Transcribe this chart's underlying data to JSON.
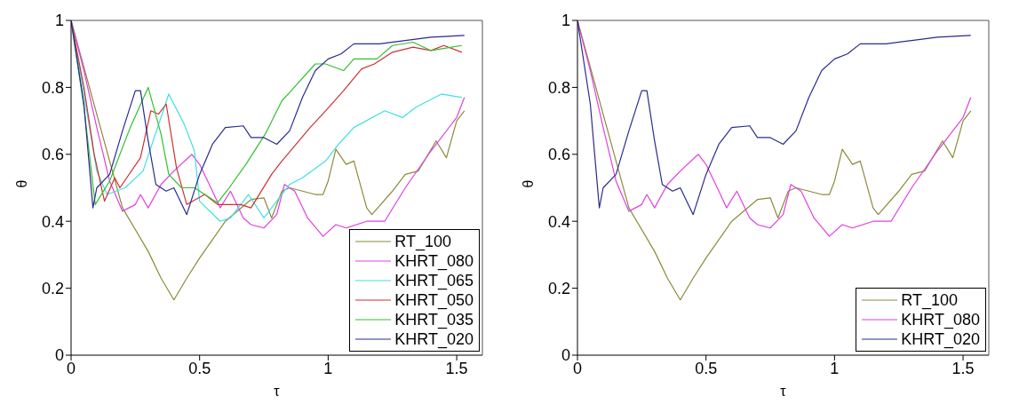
{
  "chart_data": [
    {
      "type": "line",
      "xlabel": "τ",
      "ylabel": "θ",
      "xlim": [
        0,
        1.6
      ],
      "ylim": [
        0,
        1
      ],
      "xticks": [
        0,
        0.5,
        1,
        1.5
      ],
      "yticks": [
        0,
        0.2,
        0.4,
        0.6,
        0.8,
        1
      ],
      "grid": false,
      "legend": "bottom right",
      "marker": "none",
      "line_style": "solid",
      "series": [
        {
          "name": "RT_100",
          "color": "#8b8b3a",
          "x": [
            0,
            0.05,
            0.1,
            0.15,
            0.2,
            0.3,
            0.35,
            0.4,
            0.45,
            0.5,
            0.6,
            0.7,
            0.75,
            0.78,
            0.82,
            0.85,
            0.95,
            0.98,
            1.0,
            1.03,
            1.07,
            1.1,
            1.15,
            1.17,
            1.25,
            1.3,
            1.35,
            1.42,
            1.46,
            1.5,
            1.53
          ],
          "values": [
            1,
            0.86,
            0.72,
            0.58,
            0.44,
            0.31,
            0.23,
            0.165,
            0.23,
            0.29,
            0.4,
            0.465,
            0.47,
            0.41,
            0.49,
            0.5,
            0.48,
            0.48,
            0.52,
            0.615,
            0.57,
            0.58,
            0.44,
            0.42,
            0.49,
            0.54,
            0.55,
            0.64,
            0.59,
            0.7,
            0.73
          ]
        },
        {
          "name": "KHRT_080",
          "color": "#e040e0",
          "x": [
            0,
            0.05,
            0.1,
            0.15,
            0.2,
            0.25,
            0.27,
            0.3,
            0.35,
            0.4,
            0.47,
            0.5,
            0.55,
            0.58,
            0.62,
            0.67,
            0.7,
            0.75,
            0.8,
            0.83,
            0.87,
            0.92,
            0.98,
            1.03,
            1.07,
            1.15,
            1.22,
            1.3,
            1.4,
            1.5,
            1.53
          ],
          "values": [
            1,
            0.85,
            0.68,
            0.52,
            0.43,
            0.45,
            0.48,
            0.44,
            0.51,
            0.55,
            0.6,
            0.57,
            0.49,
            0.44,
            0.49,
            0.41,
            0.39,
            0.38,
            0.42,
            0.51,
            0.49,
            0.41,
            0.355,
            0.39,
            0.38,
            0.4,
            0.4,
            0.5,
            0.61,
            0.71,
            0.77
          ]
        },
        {
          "name": "KHRT_065",
          "color": "#40e0e0",
          "x": [
            0,
            0.05,
            0.1,
            0.14,
            0.21,
            0.28,
            0.38,
            0.44,
            0.48,
            0.5,
            0.58,
            0.62,
            0.69,
            0.75,
            0.85,
            0.9,
            0.99,
            1.04,
            1.1,
            1.22,
            1.29,
            1.34,
            1.44,
            1.52
          ],
          "values": [
            1,
            0.78,
            0.55,
            0.48,
            0.5,
            0.55,
            0.78,
            0.69,
            0.61,
            0.46,
            0.4,
            0.41,
            0.48,
            0.41,
            0.51,
            0.53,
            0.58,
            0.63,
            0.68,
            0.73,
            0.71,
            0.74,
            0.78,
            0.77
          ]
        },
        {
          "name": "KHRT_050",
          "color": "#d03030",
          "x": [
            0,
            0.05,
            0.09,
            0.13,
            0.17,
            0.19,
            0.27,
            0.31,
            0.34,
            0.37,
            0.41,
            0.45,
            0.52,
            0.57,
            0.66,
            0.7,
            0.78,
            0.82,
            0.93,
            0.99,
            1.06,
            1.13,
            1.18,
            1.25,
            1.33,
            1.4,
            1.45,
            1.52
          ],
          "values": [
            1,
            0.8,
            0.6,
            0.46,
            0.53,
            0.5,
            0.59,
            0.73,
            0.72,
            0.75,
            0.56,
            0.45,
            0.48,
            0.45,
            0.45,
            0.44,
            0.54,
            0.58,
            0.68,
            0.73,
            0.79,
            0.855,
            0.87,
            0.905,
            0.92,
            0.91,
            0.925,
            0.905
          ]
        },
        {
          "name": "KHRT_035",
          "color": "#30c030",
          "x": [
            0,
            0.05,
            0.094,
            0.15,
            0.23,
            0.3,
            0.35,
            0.38,
            0.43,
            0.48,
            0.52,
            0.57,
            0.615,
            0.68,
            0.755,
            0.82,
            0.85,
            0.95,
            0.99,
            1.06,
            1.1,
            1.19,
            1.25,
            1.33,
            1.4,
            1.52
          ],
          "values": [
            1,
            0.74,
            0.45,
            0.52,
            0.68,
            0.8,
            0.66,
            0.54,
            0.5,
            0.5,
            0.48,
            0.455,
            0.5,
            0.57,
            0.66,
            0.76,
            0.785,
            0.87,
            0.87,
            0.85,
            0.885,
            0.885,
            0.925,
            0.935,
            0.91,
            0.925
          ]
        },
        {
          "name": "KHRT_020",
          "color": "#2a2a90",
          "x": [
            0,
            0.05,
            0.085,
            0.1,
            0.15,
            0.2,
            0.25,
            0.27,
            0.3,
            0.33,
            0.37,
            0.4,
            0.45,
            0.5,
            0.55,
            0.6,
            0.67,
            0.7,
            0.75,
            0.8,
            0.85,
            0.9,
            0.95,
            1.0,
            1.05,
            1.1,
            1.2,
            1.3,
            1.4,
            1.53
          ],
          "values": [
            1,
            0.75,
            0.44,
            0.5,
            0.54,
            0.67,
            0.79,
            0.79,
            0.64,
            0.51,
            0.49,
            0.5,
            0.42,
            0.54,
            0.63,
            0.68,
            0.685,
            0.65,
            0.65,
            0.63,
            0.67,
            0.77,
            0.85,
            0.885,
            0.9,
            0.93,
            0.93,
            0.94,
            0.95,
            0.955
          ]
        }
      ]
    },
    {
      "type": "line",
      "xlabel": "τ",
      "ylabel": "θ",
      "xlim": [
        0,
        1.6
      ],
      "ylim": [
        0,
        1
      ],
      "xticks": [
        0,
        0.5,
        1,
        1.5
      ],
      "yticks": [
        0,
        0.2,
        0.4,
        0.6,
        0.8,
        1
      ],
      "grid": false,
      "legend": "bottom right",
      "marker": "none",
      "line_style": "solid",
      "series": [
        {
          "name": "RT_100",
          "color": "#8b8b3a",
          "x": [
            0,
            0.05,
            0.1,
            0.15,
            0.2,
            0.3,
            0.35,
            0.4,
            0.45,
            0.5,
            0.6,
            0.7,
            0.75,
            0.78,
            0.82,
            0.85,
            0.95,
            0.98,
            1.0,
            1.03,
            1.07,
            1.1,
            1.15,
            1.17,
            1.25,
            1.3,
            1.35,
            1.42,
            1.46,
            1.5,
            1.53
          ],
          "values": [
            1,
            0.86,
            0.72,
            0.58,
            0.44,
            0.31,
            0.23,
            0.165,
            0.23,
            0.29,
            0.4,
            0.465,
            0.47,
            0.41,
            0.49,
            0.5,
            0.48,
            0.48,
            0.52,
            0.615,
            0.57,
            0.58,
            0.44,
            0.42,
            0.49,
            0.54,
            0.55,
            0.64,
            0.59,
            0.7,
            0.73
          ]
        },
        {
          "name": "KHRT_080",
          "color": "#e040e0",
          "x": [
            0,
            0.05,
            0.1,
            0.15,
            0.2,
            0.25,
            0.27,
            0.3,
            0.35,
            0.4,
            0.47,
            0.5,
            0.55,
            0.58,
            0.62,
            0.67,
            0.7,
            0.75,
            0.8,
            0.83,
            0.87,
            0.92,
            0.98,
            1.03,
            1.07,
            1.15,
            1.22,
            1.3,
            1.4,
            1.5,
            1.53
          ],
          "values": [
            1,
            0.85,
            0.68,
            0.52,
            0.43,
            0.45,
            0.48,
            0.44,
            0.51,
            0.55,
            0.6,
            0.57,
            0.49,
            0.44,
            0.49,
            0.41,
            0.39,
            0.38,
            0.42,
            0.51,
            0.49,
            0.41,
            0.355,
            0.39,
            0.38,
            0.4,
            0.4,
            0.5,
            0.61,
            0.71,
            0.77
          ]
        },
        {
          "name": "KHRT_020",
          "color": "#2a2a90",
          "x": [
            0,
            0.05,
            0.085,
            0.1,
            0.15,
            0.2,
            0.25,
            0.27,
            0.3,
            0.33,
            0.37,
            0.4,
            0.45,
            0.5,
            0.55,
            0.6,
            0.67,
            0.7,
            0.75,
            0.8,
            0.85,
            0.9,
            0.95,
            1.0,
            1.05,
            1.1,
            1.2,
            1.3,
            1.4,
            1.53
          ],
          "values": [
            1,
            0.75,
            0.44,
            0.5,
            0.54,
            0.67,
            0.79,
            0.79,
            0.64,
            0.51,
            0.49,
            0.5,
            0.42,
            0.54,
            0.63,
            0.68,
            0.685,
            0.65,
            0.65,
            0.63,
            0.67,
            0.77,
            0.85,
            0.885,
            0.9,
            0.93,
            0.93,
            0.94,
            0.95,
            0.955
          ]
        }
      ]
    }
  ]
}
